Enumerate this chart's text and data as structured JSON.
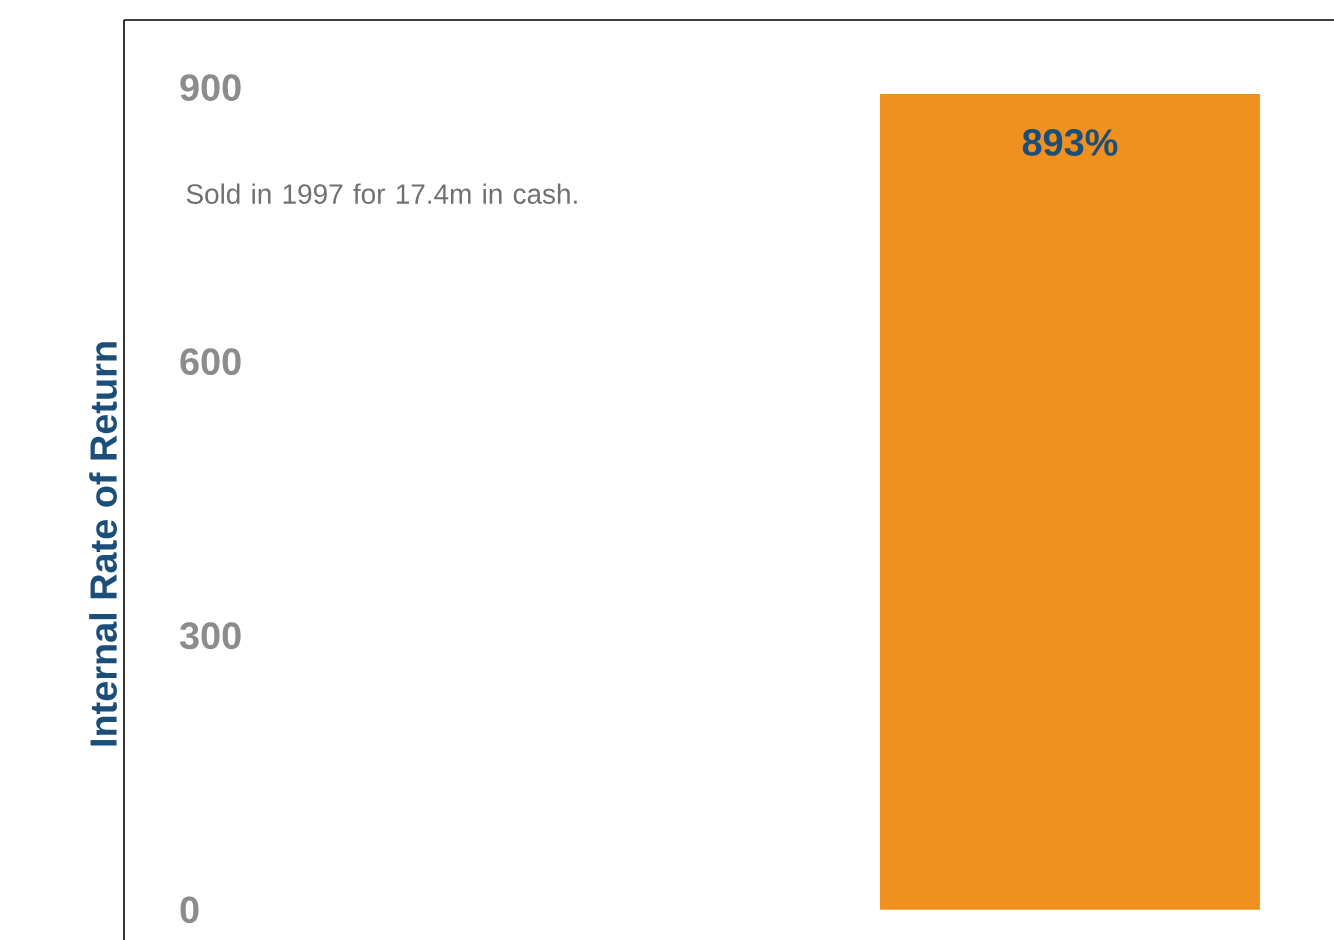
{
  "chart_data": {
    "type": "bar",
    "ylabel": "Internal Rate of Return",
    "categories": [
      null
    ],
    "values": [
      893
    ],
    "value_labels": [
      "893%"
    ],
    "color": "#f0901e",
    "ylim": [
      -33,
      974
    ],
    "yticks": [
      0,
      300,
      600,
      900
    ],
    "tick_labels": "y",
    "grid": false,
    "annotations": [
      "Sold in 1997 for 17.4m in cash."
    ]
  }
}
